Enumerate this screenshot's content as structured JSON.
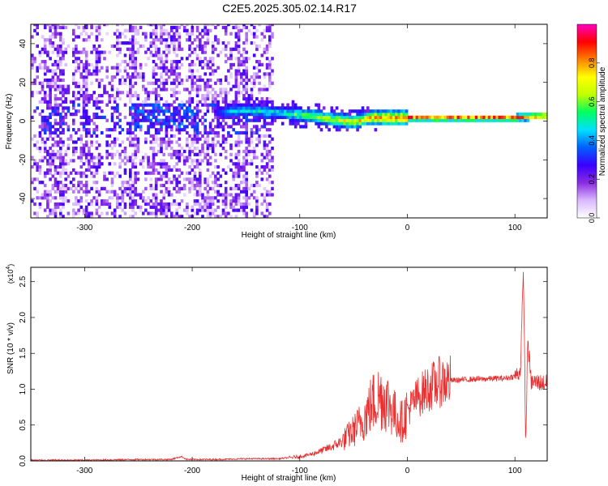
{
  "title": "C2E5.2025.305.02.14.R17",
  "chart_data": [
    {
      "type": "heatmap",
      "title": "C2E5.2025.305.02.14.R17",
      "xlabel": "Height of straight line (km)",
      "ylabel": "Frequency (Hz)",
      "xlim": [
        -350,
        130
      ],
      "ylim": [
        -50,
        50
      ],
      "x_ticks": [
        -300,
        -200,
        -100,
        0,
        100
      ],
      "y_ticks": [
        -40,
        -20,
        0,
        20,
        40
      ],
      "colorbar": {
        "label": "Normalized spectral amplitude",
        "range": [
          0,
          1
        ],
        "ticks": [
          "0.0",
          "0.2",
          "0.4",
          "0.6",
          "0.8"
        ],
        "colors": [
          "#ffffff",
          "#d9b8ff",
          "#8a2be2",
          "#3a00ff",
          "#0060ff",
          "#00e0ff",
          "#00ff60",
          "#c0ff00",
          "#ffff00",
          "#ff8000",
          "#ff0000",
          "#ff00c0"
        ]
      },
      "ridge": {
        "x": [
          -180,
          -170,
          -150,
          -130,
          -110,
          -90,
          -70,
          -50,
          -35,
          -20,
          0,
          60,
          100,
          130
        ],
        "freq": [
          4,
          4,
          5,
          4,
          3,
          2,
          0,
          -1,
          1,
          1,
          1,
          1,
          1,
          2
        ],
        "amplitude": [
          0.3,
          0.45,
          0.5,
          0.5,
          0.55,
          0.65,
          0.7,
          0.75,
          0.8,
          0.85,
          0.9,
          0.9,
          0.9,
          0.85
        ]
      }
    },
    {
      "type": "line",
      "xlabel": "Height of straight line (km)",
      "ylabel": "SNR (10 * v/v)",
      "y_multiplier": "(x10",
      "y_multiplier_exp": "4",
      "xlim": [
        -350,
        130
      ],
      "ylim": [
        0,
        2.7
      ],
      "x_ticks": [
        -300,
        -200,
        -100,
        0,
        100
      ],
      "y_ticks": [
        "0.0",
        "0.5",
        "1.0",
        "1.5",
        "2.0",
        "2.5"
      ],
      "color": "#e83030",
      "series": [
        {
          "x": [
            -350,
            -300,
            -250,
            -220,
            -210,
            -205,
            -200,
            -180,
            -150,
            -120,
            -100,
            -90,
            -80,
            -70,
            -60,
            -50,
            -40,
            -35,
            -30,
            -25,
            -20,
            -15,
            -10,
            -5,
            0,
            10,
            20,
            30,
            40,
            50,
            60,
            70,
            80,
            90,
            100,
            105,
            108,
            110,
            112,
            115,
            120,
            130
          ],
          "values": [
            0.01,
            0.01,
            0.02,
            0.02,
            0.06,
            0.02,
            0.02,
            0.02,
            0.03,
            0.03,
            0.06,
            0.09,
            0.14,
            0.2,
            0.28,
            0.42,
            0.6,
            0.75,
            0.85,
            0.9,
            0.85,
            0.75,
            0.6,
            0.55,
            0.7,
            0.9,
            1.02,
            1.1,
            1.12,
            1.13,
            1.14,
            1.14,
            1.15,
            1.15,
            1.18,
            1.25,
            2.65,
            0.2,
            1.7,
            1.1,
            1.1,
            1.08
          ]
        }
      ]
    }
  ]
}
